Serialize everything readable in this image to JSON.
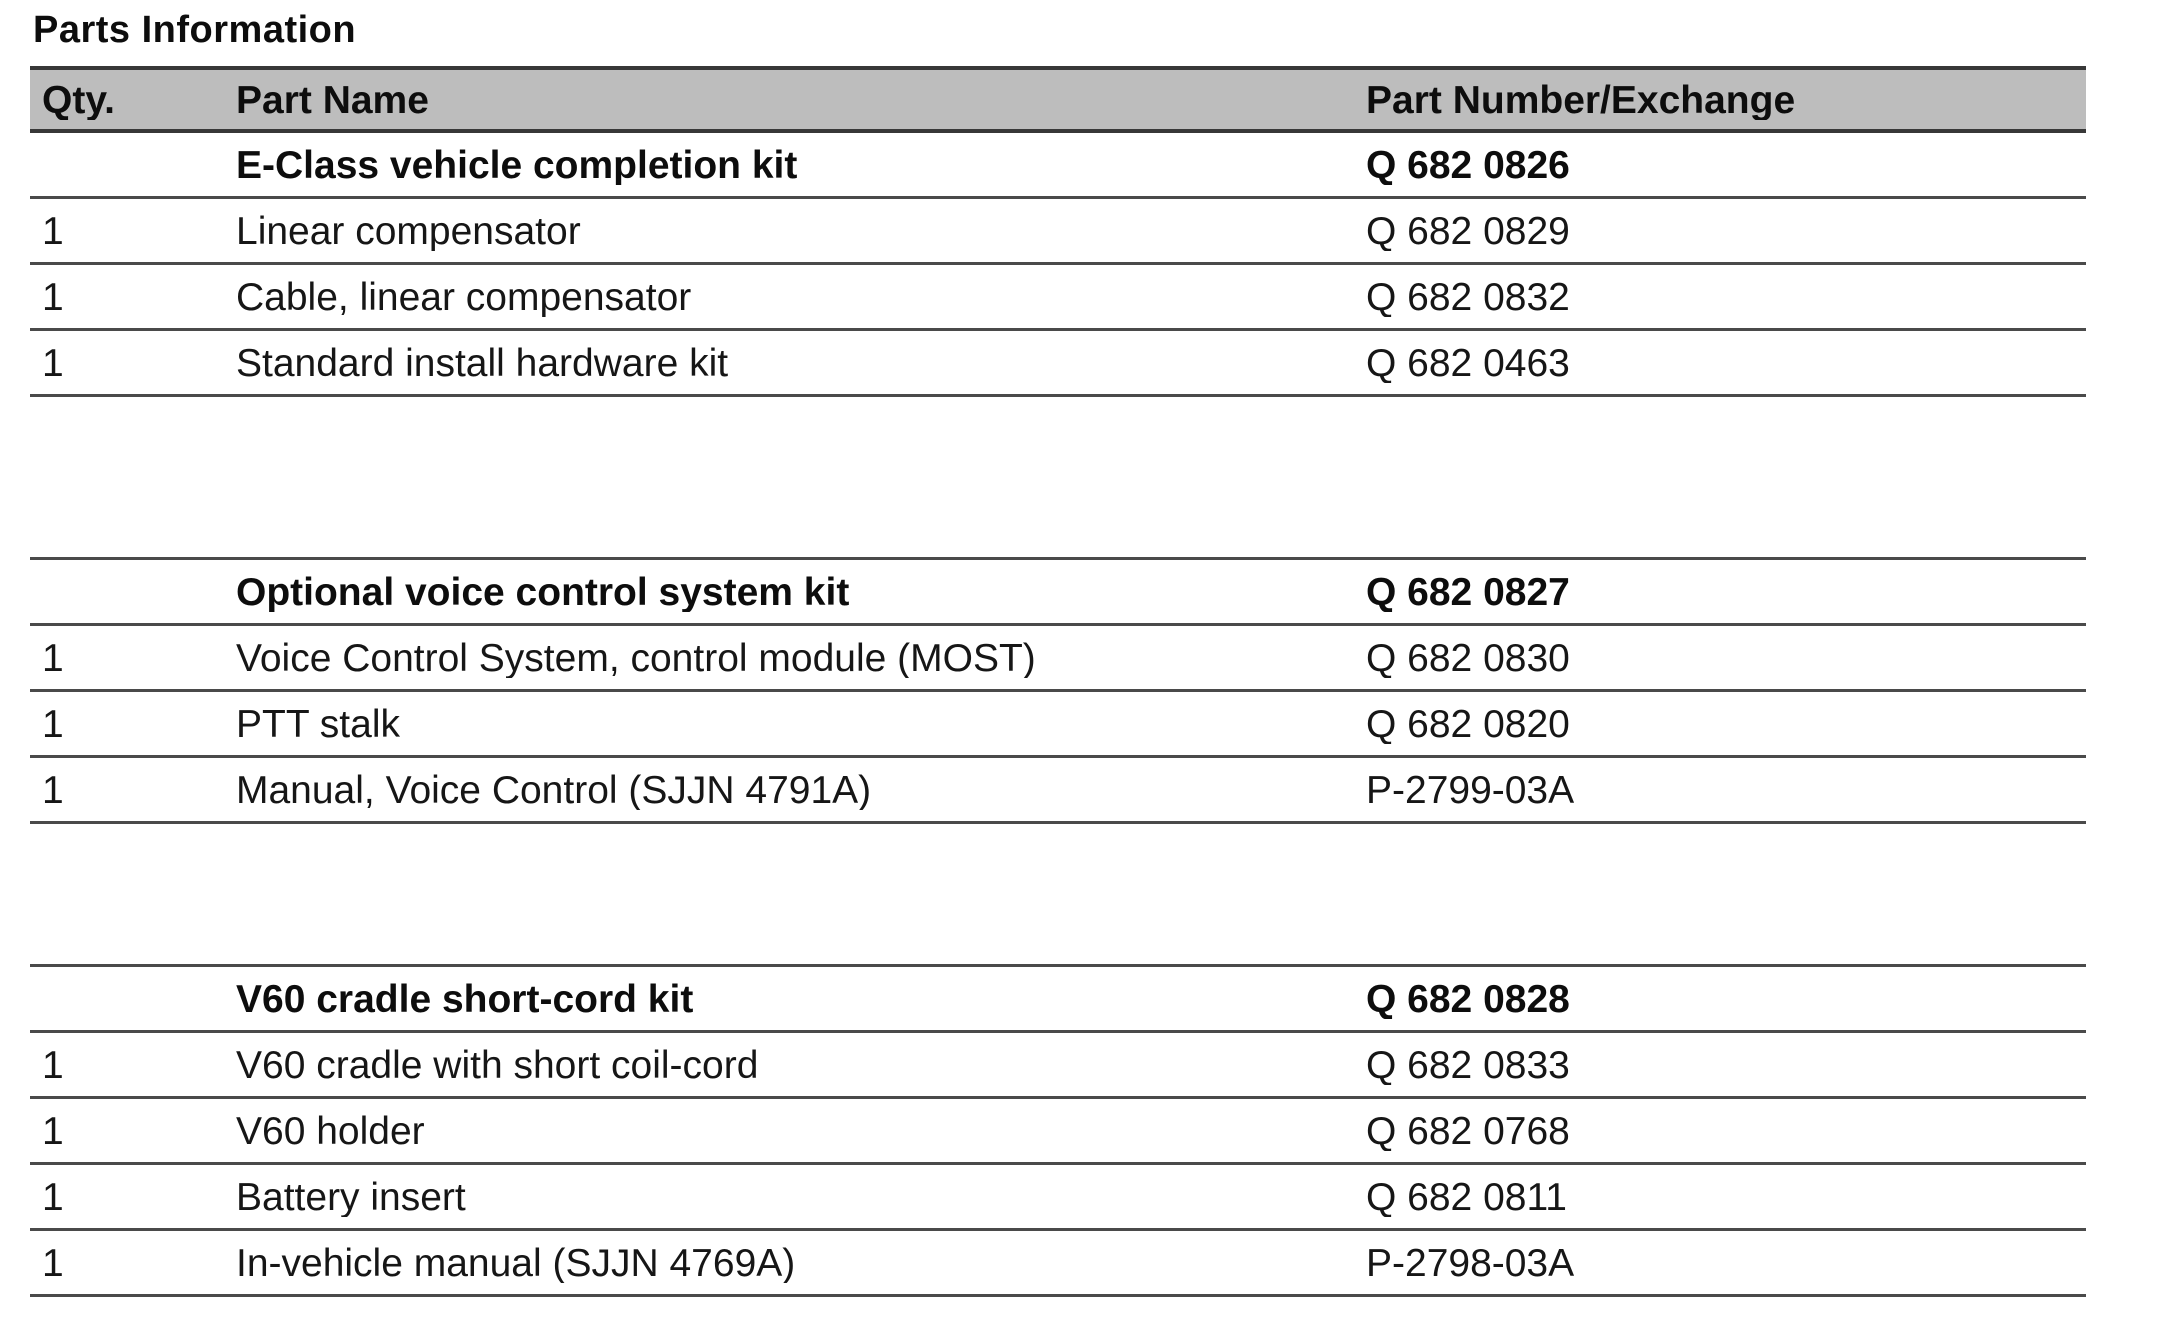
{
  "page_title": "Parts Information",
  "colors": {
    "header_bg": "#bdbdbd",
    "line": "#4a4a4a",
    "line_dark": "#383838",
    "text": "#161616"
  },
  "table": {
    "headers": {
      "qty": "Qty.",
      "part_name": "Part Name",
      "part_number": "Part Number/Exchange"
    },
    "sections": [
      {
        "kit_row": {
          "qty": "",
          "name": "E-Class vehicle completion kit",
          "number": "Q 682 0826"
        },
        "rows": [
          {
            "qty": "1",
            "name": "Linear compensator",
            "number": "Q 682 0829"
          },
          {
            "qty": "1",
            "name": "Cable, linear compensator",
            "number": "Q 682 0832"
          },
          {
            "qty": "1",
            "name": "Standard install hardware kit",
            "number": "Q 682 0463"
          }
        ]
      },
      {
        "kit_row": {
          "qty": "",
          "name": "Optional voice control system kit",
          "number": "Q 682 0827"
        },
        "rows": [
          {
            "qty": "1",
            "name": "Voice Control System, control module (MOST)",
            "number": "Q 682 0830"
          },
          {
            "qty": "1",
            "name": "PTT stalk",
            "number": "Q 682 0820"
          },
          {
            "qty": "1",
            "name": "Manual, Voice Control (SJJN 4791A)",
            "number": "P-2799-03A"
          }
        ]
      },
      {
        "kit_row": {
          "qty": "",
          "name": "V60 cradle short-cord kit",
          "number": "Q 682 0828"
        },
        "rows": [
          {
            "qty": "1",
            "name": "V60 cradle with short coil-cord",
            "number": "Q 682 0833"
          },
          {
            "qty": "1",
            "name": "V60 holder",
            "number": "Q 682 0768"
          },
          {
            "qty": "1",
            "name": "Battery insert",
            "number": "Q 682 0811"
          },
          {
            "qty": "1",
            "name": "In-vehicle manual (SJJN 4769A)",
            "number": "P-2798-03A"
          }
        ]
      }
    ]
  }
}
